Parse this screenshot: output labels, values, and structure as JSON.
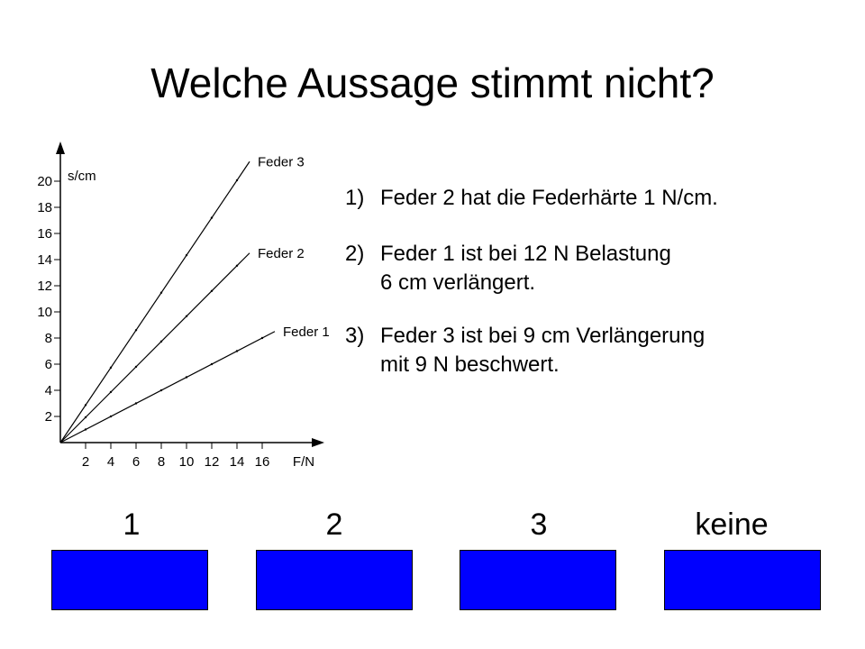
{
  "title": "Welche Aussage stimmt nicht?",
  "statements": [
    {
      "number": "1)",
      "lines": [
        "Feder 2 hat die Federhärte 1 N/cm."
      ]
    },
    {
      "number": "2)",
      "lines": [
        "Feder 1 ist bei 12 N Belastung",
        "6 cm verlängert."
      ]
    },
    {
      "number": "3)",
      "lines": [
        "Feder 3 ist bei 9 cm Verlängerung",
        "mit 9 N beschwert."
      ]
    }
  ],
  "answers": [
    {
      "label": "1"
    },
    {
      "label": "2"
    },
    {
      "label": "3"
    },
    {
      "label": "keine"
    }
  ],
  "colors": {
    "button": "#0000ff",
    "text": "#000000"
  },
  "chart_data": {
    "type": "line",
    "xlabel": "F/N",
    "ylabel": "s/cm",
    "x_ticks": [
      2,
      4,
      6,
      8,
      10,
      12,
      14,
      16
    ],
    "y_ticks": [
      2,
      4,
      6,
      8,
      10,
      12,
      14,
      16,
      18,
      20
    ],
    "grid": false,
    "series": [
      {
        "name": "Feder 3",
        "x": [
          0,
          15
        ],
        "y": [
          0,
          21.5
        ]
      },
      {
        "name": "Feder 2",
        "x": [
          0,
          15
        ],
        "y": [
          0,
          14.5
        ]
      },
      {
        "name": "Feder 1",
        "x": [
          0,
          17
        ],
        "y": [
          0,
          8.5
        ]
      }
    ]
  }
}
